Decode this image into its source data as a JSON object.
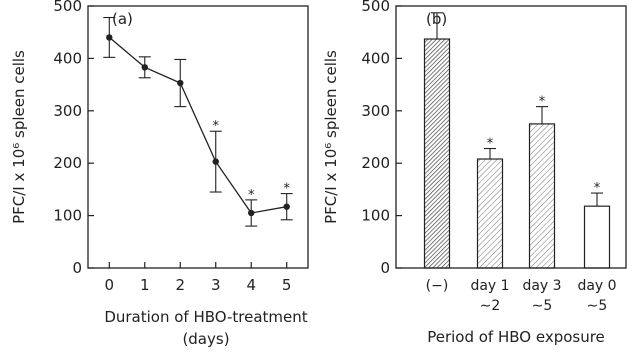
{
  "chart_data": [
    {
      "type": "line",
      "panel_label": "(a)",
      "xlabel_line1": "Duration of HBO-treatment",
      "xlabel_line2": "(days)",
      "ylabel": "PFC/I x 10⁶ spleen cells",
      "ylim": [
        0,
        500
      ],
      "xlim": [
        -0.6,
        5.6
      ],
      "x": [
        0,
        1,
        2,
        3,
        4,
        5
      ],
      "x_tick_labels": [
        "0",
        "1",
        "2",
        "3",
        "4",
        "5"
      ],
      "y_ticks": [
        0,
        100,
        200,
        300,
        400,
        500
      ],
      "y_tick_labels": [
        "0",
        "100",
        "200",
        "300",
        "400",
        "500"
      ],
      "values": [
        440,
        383,
        353,
        203,
        105,
        117
      ],
      "error_plus": [
        38,
        20,
        45,
        58,
        25,
        25
      ],
      "error_minus": [
        38,
        20,
        45,
        58,
        25,
        25
      ],
      "significance": [
        "",
        "",
        "",
        "*",
        "*",
        "*"
      ]
    },
    {
      "type": "bar",
      "panel_label": "(b)",
      "xlabel": "Period of HBO exposure",
      "ylabel": "PFC/I x 10⁶ spleen cells",
      "ylim": [
        0,
        500
      ],
      "y_ticks": [
        0,
        100,
        200,
        300,
        400,
        500
      ],
      "y_tick_labels": [
        "0",
        "100",
        "200",
        "300",
        "400",
        "500"
      ],
      "categories": [
        {
          "line1": "(−)",
          "line2": ""
        },
        {
          "line1": "day 1",
          "line2": "∼2"
        },
        {
          "line1": "day 3",
          "line2": "∼5"
        },
        {
          "line1": "day 0",
          "line2": "∼5"
        }
      ],
      "values": [
        437,
        208,
        275,
        118
      ],
      "error_plus": [
        50,
        20,
        33,
        25
      ],
      "fill": [
        "dense-hatch",
        "light-hatch",
        "light-hatch",
        "none"
      ],
      "significance": [
        "",
        "*",
        "*",
        "*"
      ]
    }
  ]
}
